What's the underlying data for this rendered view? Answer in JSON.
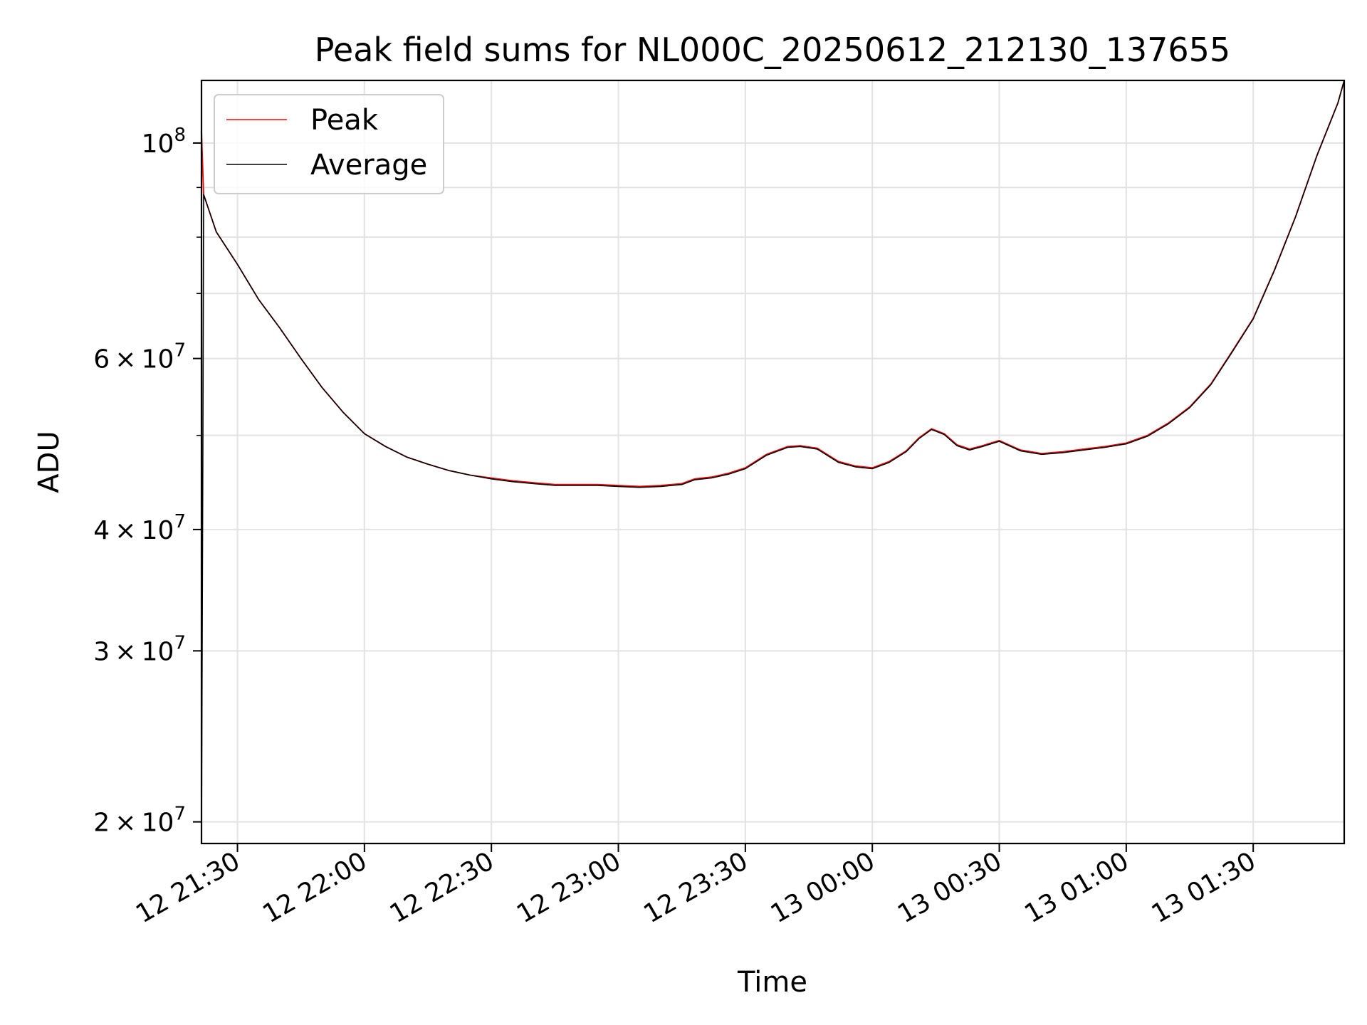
{
  "chart_data": {
    "type": "line",
    "title": "Peak field sums for NL000C_20250612_212130_137655",
    "xlabel": "Time",
    "ylabel": "ADU",
    "y_scale": "log",
    "ylim": [
      19000000,
      116000000
    ],
    "xlim": [
      "2025-06-12 21:21:30",
      "2025-06-13 01:51:30"
    ],
    "grid": true,
    "legend_position": "top-left",
    "x_ticks": [
      {
        "value": "2025-06-12 21:30",
        "label": "12 21:30"
      },
      {
        "value": "2025-06-12 22:00",
        "label": "12 22:00"
      },
      {
        "value": "2025-06-12 22:30",
        "label": "12 22:30"
      },
      {
        "value": "2025-06-12 23:00",
        "label": "12 23:00"
      },
      {
        "value": "2025-06-12 23:30",
        "label": "12 23:30"
      },
      {
        "value": "2025-06-13 00:00",
        "label": "13 00:00"
      },
      {
        "value": "2025-06-13 00:30",
        "label": "13 00:30"
      },
      {
        "value": "2025-06-13 01:00",
        "label": "13 01:00"
      },
      {
        "value": "2025-06-13 01:30",
        "label": "13 01:30"
      }
    ],
    "y_ticks": [
      {
        "value": 100000000,
        "mantissa": "",
        "base": "10",
        "exp": "8"
      },
      {
        "value": 60000000,
        "mantissa": "6",
        "base": "10",
        "exp": "7"
      },
      {
        "value": 40000000,
        "mantissa": "4",
        "base": "10",
        "exp": "7"
      },
      {
        "value": 30000000,
        "mantissa": "3",
        "base": "10",
        "exp": "7"
      },
      {
        "value": 20000000,
        "mantissa": "2",
        "base": "10",
        "exp": "7"
      }
    ],
    "y_minor_ticks": [
      90000000,
      80000000,
      70000000,
      50000000
    ],
    "series": [
      {
        "name": "Peak",
        "color": "#ff0000",
        "x": [
          "2025-06-12 21:21:30",
          "2025-06-12 21:22:00",
          "2025-06-12 21:25:00",
          "2025-06-12 21:30:00",
          "2025-06-12 21:35:00",
          "2025-06-12 21:40:00",
          "2025-06-12 21:45:00",
          "2025-06-12 21:50:00",
          "2025-06-12 21:55:00",
          "2025-06-12 22:00:00",
          "2025-06-12 22:05:00",
          "2025-06-12 22:10:00",
          "2025-06-12 22:15:00",
          "2025-06-12 22:20:00",
          "2025-06-12 22:25:00",
          "2025-06-12 22:30:00",
          "2025-06-12 22:35:00",
          "2025-06-12 22:40:00",
          "2025-06-12 22:45:00",
          "2025-06-12 22:50:00",
          "2025-06-12 22:55:00",
          "2025-06-12 23:00:00",
          "2025-06-12 23:05:00",
          "2025-06-12 23:10:00",
          "2025-06-12 23:15:00",
          "2025-06-12 23:18:00",
          "2025-06-12 23:22:00",
          "2025-06-12 23:26:00",
          "2025-06-12 23:30:00",
          "2025-06-12 23:35:00",
          "2025-06-12 23:40:00",
          "2025-06-12 23:43:00",
          "2025-06-12 23:47:00",
          "2025-06-12 23:52:00",
          "2025-06-12 23:56:00",
          "2025-06-13 00:00:00",
          "2025-06-13 00:04:00",
          "2025-06-13 00:08:00",
          "2025-06-13 00:11:00",
          "2025-06-13 00:14:00",
          "2025-06-13 00:17:00",
          "2025-06-13 00:20:00",
          "2025-06-13 00:23:00",
          "2025-06-13 00:26:00",
          "2025-06-13 00:30:00",
          "2025-06-13 00:35:00",
          "2025-06-13 00:40:00",
          "2025-06-13 00:45:00",
          "2025-06-13 00:50:00",
          "2025-06-13 00:55:00",
          "2025-06-13 01:00:00",
          "2025-06-13 01:05:00",
          "2025-06-13 01:10:00",
          "2025-06-13 01:15:00",
          "2025-06-13 01:20:00",
          "2025-06-13 01:25:00",
          "2025-06-13 01:30:00",
          "2025-06-13 01:35:00",
          "2025-06-13 01:40:00",
          "2025-06-13 01:45:00",
          "2025-06-13 01:50:00",
          "2025-06-13 01:51:30"
        ],
        "y": [
          103000000,
          88500000,
          81000000,
          75000000,
          69000000,
          64500000,
          60000000,
          56000000,
          52800000,
          50200000,
          48700000,
          47500000,
          46700000,
          46000000,
          45500000,
          45200000,
          44900000,
          44700000,
          44500000,
          44500000,
          44500000,
          44400000,
          44300000,
          44400000,
          44600000,
          45100000,
          45300000,
          45700000,
          46300000,
          47800000,
          48700000,
          48800000,
          48500000,
          47000000,
          46500000,
          46300000,
          47000000,
          48200000,
          49700000,
          50800000,
          50200000,
          48900000,
          48400000,
          48800000,
          49400000,
          48300000,
          47900000,
          48100000,
          48400000,
          48700000,
          49100000,
          50000000,
          51500000,
          53500000,
          56500000,
          61000000,
          66000000,
          74000000,
          84000000,
          97000000,
          110000000,
          116000000
        ]
      },
      {
        "name": "Average",
        "color": "#000000",
        "x": [
          "2025-06-12 21:21:30",
          "2025-06-12 21:21:50",
          "2025-06-12 21:22:00",
          "2025-06-12 21:25:00",
          "2025-06-12 21:30:00",
          "2025-06-12 21:35:00",
          "2025-06-12 21:40:00",
          "2025-06-12 21:45:00",
          "2025-06-12 21:50:00",
          "2025-06-12 21:55:00",
          "2025-06-12 22:00:00",
          "2025-06-12 22:05:00",
          "2025-06-12 22:10:00",
          "2025-06-12 22:15:00",
          "2025-06-12 22:20:00",
          "2025-06-12 22:25:00",
          "2025-06-12 22:30:00",
          "2025-06-12 22:35:00",
          "2025-06-12 22:40:00",
          "2025-06-12 22:45:00",
          "2025-06-12 22:50:00",
          "2025-06-12 22:55:00",
          "2025-06-12 23:00:00",
          "2025-06-12 23:05:00",
          "2025-06-12 23:10:00",
          "2025-06-12 23:15:00",
          "2025-06-12 23:18:00",
          "2025-06-12 23:22:00",
          "2025-06-12 23:26:00",
          "2025-06-12 23:30:00",
          "2025-06-12 23:35:00",
          "2025-06-12 23:40:00",
          "2025-06-12 23:43:00",
          "2025-06-12 23:47:00",
          "2025-06-12 23:52:00",
          "2025-06-12 23:56:00",
          "2025-06-13 00:00:00",
          "2025-06-13 00:04:00",
          "2025-06-13 00:08:00",
          "2025-06-13 00:11:00",
          "2025-06-13 00:14:00",
          "2025-06-13 00:17:00",
          "2025-06-13 00:20:00",
          "2025-06-13 00:23:00",
          "2025-06-13 00:26:00",
          "2025-06-13 00:30:00",
          "2025-06-13 00:35:00",
          "2025-06-13 00:40:00",
          "2025-06-13 00:45:00",
          "2025-06-13 00:50:00",
          "2025-06-13 00:55:00",
          "2025-06-13 01:00:00",
          "2025-06-13 01:05:00",
          "2025-06-13 01:10:00",
          "2025-06-13 01:15:00",
          "2025-06-13 01:20:00",
          "2025-06-13 01:25:00",
          "2025-06-13 01:30:00",
          "2025-06-13 01:35:00",
          "2025-06-13 01:40:00",
          "2025-06-13 01:45:00",
          "2025-06-13 01:50:00",
          "2025-06-13 01:51:30"
        ],
        "y": [
          19000000,
          50000000,
          88500000,
          81000000,
          75000000,
          69000000,
          64500000,
          60000000,
          56000000,
          52800000,
          50200000,
          48700000,
          47500000,
          46700000,
          46000000,
          45500000,
          45100000,
          44800000,
          44600000,
          44400000,
          44400000,
          44400000,
          44300000,
          44200000,
          44300000,
          44500000,
          45000000,
          45200000,
          45600000,
          46200000,
          47700000,
          48600000,
          48700000,
          48400000,
          46900000,
          46400000,
          46200000,
          46900000,
          48100000,
          49600000,
          50700000,
          50100000,
          48800000,
          48300000,
          48700000,
          49300000,
          48200000,
          47800000,
          48000000,
          48300000,
          48600000,
          49000000,
          49900000,
          51400000,
          53400000,
          56400000,
          60900000,
          65900000,
          73900000,
          83900000,
          96900000,
          109900000,
          116000000
        ]
      }
    ]
  }
}
